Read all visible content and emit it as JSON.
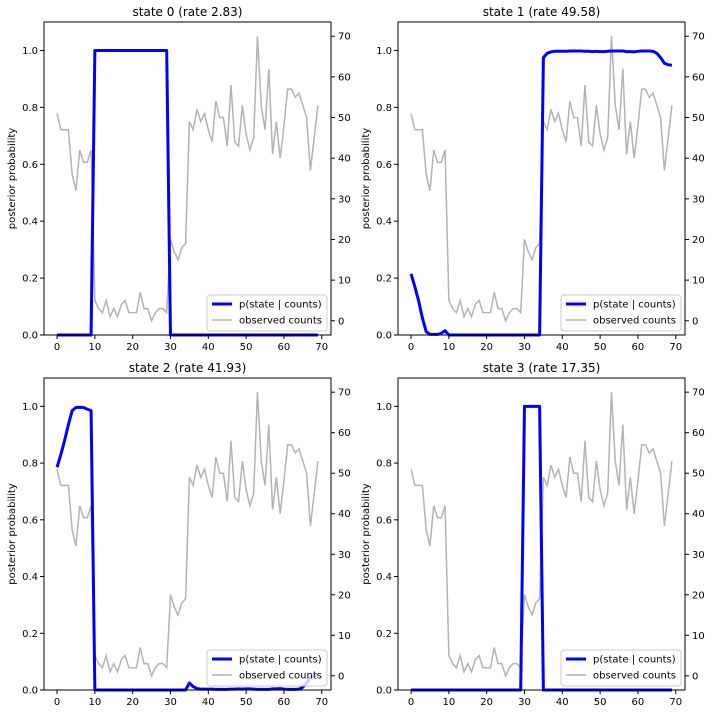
{
  "chart_data": {
    "type": "line",
    "layout": "2x2 grid",
    "shared": {
      "x": [
        0,
        1,
        2,
        3,
        4,
        5,
        6,
        7,
        8,
        9,
        10,
        11,
        12,
        13,
        14,
        15,
        16,
        17,
        18,
        19,
        20,
        21,
        22,
        23,
        24,
        25,
        26,
        27,
        28,
        29,
        30,
        31,
        32,
        33,
        34,
        35,
        36,
        37,
        38,
        39,
        40,
        41,
        42,
        43,
        44,
        45,
        46,
        47,
        48,
        49,
        50,
        51,
        52,
        53,
        54,
        55,
        56,
        57,
        58,
        59,
        60,
        61,
        62,
        63,
        64,
        65,
        66,
        67,
        68,
        69
      ],
      "observed_counts": [
        51,
        47,
        47,
        47,
        36,
        32,
        42,
        39,
        39,
        42,
        5,
        3,
        2,
        5,
        1,
        3,
        1,
        4,
        5,
        2,
        2,
        2,
        7,
        3,
        3,
        0,
        2,
        3,
        3,
        2,
        20,
        17,
        15,
        18,
        19,
        49,
        47,
        52,
        49,
        51,
        47,
        44,
        54,
        50,
        50,
        43,
        58,
        44,
        43,
        53,
        46,
        42,
        45,
        70,
        53,
        47,
        62,
        41,
        49,
        40,
        48,
        57,
        57,
        55,
        56,
        53,
        50,
        37,
        45,
        53
      ],
      "ylabel": "posterior probability",
      "xlim": [
        -3.45,
        72.45
      ],
      "ylim_left": [
        0,
        1.1
      ],
      "ylim_right": [
        -3.5,
        73.5
      ],
      "x_ticks": [
        "0",
        "10",
        "20",
        "30",
        "40",
        "50",
        "60",
        "70"
      ],
      "y_ticks_left": [
        "0.0",
        "0.2",
        "0.4",
        "0.6",
        "0.8",
        "1.0"
      ],
      "y_ticks_right": [
        "0",
        "10",
        "20",
        "30",
        "40",
        "50",
        "60",
        "70"
      ],
      "legend": {
        "placement": "lower-right",
        "entries": [
          "p(state | counts)",
          "observed counts"
        ]
      },
      "colors": {
        "posterior": "#0000ff",
        "counts": "#b3b3b3"
      },
      "grid": false
    },
    "panels": [
      {
        "title": "state 0 (rate 2.83)",
        "posterior": [
          0,
          0,
          0,
          0,
          0,
          0,
          0,
          0,
          0,
          0,
          1,
          1,
          1,
          1,
          1,
          1,
          1,
          1,
          1,
          1,
          1,
          1,
          1,
          1,
          1,
          1,
          1,
          1,
          1,
          1,
          0,
          0,
          0,
          0,
          0,
          0,
          0,
          0,
          0,
          0,
          0,
          0,
          0,
          0,
          0,
          0,
          0,
          0,
          0,
          0,
          0,
          0,
          0,
          0,
          0,
          0,
          0,
          0,
          0,
          0,
          0,
          0,
          0,
          0,
          0,
          0,
          0,
          0,
          0,
          0
        ]
      },
      {
        "title": "state 1 (rate 49.58)",
        "posterior": [
          0.215,
          0.17,
          0.12,
          0.06,
          0.012,
          0.002,
          0.002,
          0.002,
          0.006,
          0.015,
          0,
          0,
          0,
          0,
          0,
          0,
          0,
          0,
          0,
          0,
          0,
          0,
          0,
          0,
          0,
          0,
          0,
          0,
          0,
          0,
          0,
          0,
          0,
          0,
          0,
          0.975,
          0.99,
          0.995,
          0.997,
          0.997,
          0.997,
          0.997,
          0.998,
          0.998,
          0.998,
          0.998,
          0.997,
          0.997,
          0.996,
          0.997,
          0.996,
          0.996,
          0.997,
          0.998,
          0.998,
          0.998,
          0.998,
          0.996,
          0.996,
          0.995,
          0.997,
          0.998,
          0.998,
          0.998,
          0.997,
          0.99,
          0.975,
          0.955,
          0.95,
          0.948
        ]
      },
      {
        "title": "state 2 (rate 41.93)",
        "posterior": [
          0.785,
          0.83,
          0.88,
          0.935,
          0.985,
          0.996,
          0.997,
          0.996,
          0.99,
          0.985,
          0,
          0,
          0,
          0,
          0,
          0,
          0,
          0,
          0,
          0,
          0,
          0,
          0,
          0,
          0,
          0,
          0,
          0,
          0,
          0,
          0,
          0,
          0,
          0,
          0,
          0.025,
          0.012,
          0.005,
          0.003,
          0.003,
          0.003,
          0.003,
          0.002,
          0.002,
          0.002,
          0.002,
          0.003,
          0.003,
          0.004,
          0.003,
          0.004,
          0.004,
          0.003,
          0.002,
          0.002,
          0.002,
          0.002,
          0.004,
          0.004,
          0.005,
          0.003,
          0.002,
          0.002,
          0.002,
          0.003,
          0.01,
          0.025,
          0.045,
          0.05,
          0.052
        ]
      },
      {
        "title": "state 3 (rate 17.35)",
        "posterior": [
          0,
          0,
          0,
          0,
          0,
          0,
          0,
          0,
          0,
          0,
          0,
          0,
          0,
          0,
          0,
          0,
          0,
          0,
          0,
          0,
          0,
          0,
          0,
          0,
          0,
          0,
          0,
          0,
          0,
          0,
          1,
          1,
          1,
          1,
          1,
          0,
          0,
          0,
          0,
          0,
          0,
          0,
          0,
          0,
          0,
          0,
          0,
          0,
          0,
          0,
          0,
          0,
          0,
          0,
          0,
          0,
          0,
          0,
          0,
          0,
          0,
          0,
          0,
          0,
          0,
          0,
          0,
          0,
          0,
          0
        ]
      }
    ]
  }
}
